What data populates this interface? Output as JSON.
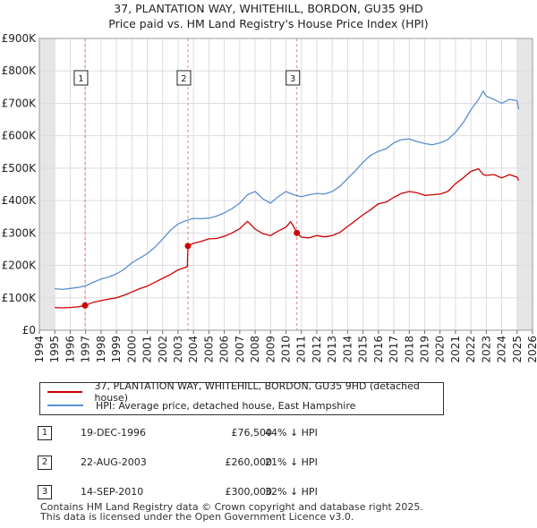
{
  "title_line1": "37, PLANTATION WAY, WHITEHILL, BORDON, GU35 9HD",
  "title_line2": "Price paid vs. HM Land Registry's House Price Index (HPI)",
  "chart_data": {
    "type": "line",
    "title": "37, PLANTATION WAY, WHITEHILL, BORDON, GU35 9HD — Price paid vs. HM Land Registry's House Price Index (HPI)",
    "xlabel": "",
    "ylabel": "",
    "xlim": [
      1994,
      2026
    ],
    "ylim": [
      0,
      900000
    ],
    "y_ticks": [
      0,
      100000,
      200000,
      300000,
      400000,
      500000,
      600000,
      700000,
      800000,
      900000
    ],
    "y_tick_labels": [
      "£0",
      "£100K",
      "£200K",
      "£300K",
      "£400K",
      "£500K",
      "£600K",
      "£700K",
      "£800K",
      "£900K"
    ],
    "x_ticks": [
      1994,
      1995,
      1996,
      1997,
      1998,
      1999,
      2000,
      2001,
      2002,
      2003,
      2004,
      2005,
      2006,
      2007,
      2008,
      2009,
      2010,
      2011,
      2012,
      2013,
      2014,
      2015,
      2016,
      2017,
      2018,
      2019,
      2020,
      2021,
      2022,
      2023,
      2024,
      2025,
      2026
    ],
    "x_tick_labels": [
      "1994",
      "1995",
      "1996",
      "1997",
      "1998",
      "1999",
      "2000",
      "2001",
      "2002",
      "2003",
      "2004",
      "2005",
      "2006",
      "2007",
      "2008",
      "2009",
      "2010",
      "2011",
      "2012",
      "2013",
      "2014",
      "2015",
      "2016",
      "2017",
      "2018",
      "2019",
      "2020",
      "2021",
      "2022",
      "2023",
      "2024",
      "2025",
      "2026"
    ],
    "grid": true,
    "shaded_ranges": [
      [
        1994,
        1995
      ],
      [
        2025,
        2026
      ]
    ],
    "series": [
      {
        "name": "37, PLANTATION WAY, WHITEHILL, BORDON, GU35 9HD (detached house)",
        "color": "#cc0000",
        "x": [
          1995.0,
          1995.5,
          1996.0,
          1996.5,
          1996.96,
          1997.5,
          1998.0,
          1998.5,
          1999.0,
          1999.5,
          2000.0,
          2000.5,
          2001.0,
          2001.5,
          2002.0,
          2002.5,
          2003.0,
          2003.6,
          2003.64,
          2004.0,
          2004.5,
          2005.0,
          2005.5,
          2006.0,
          2006.5,
          2007.0,
          2007.5,
          2008.0,
          2008.5,
          2009.0,
          2009.5,
          2010.0,
          2010.3,
          2010.5,
          2010.71,
          2011.0,
          2011.5,
          2012.0,
          2012.5,
          2013.0,
          2013.5,
          2014.0,
          2014.5,
          2015.0,
          2015.5,
          2016.0,
          2016.5,
          2017.0,
          2017.5,
          2018.0,
          2018.5,
          2019.0,
          2019.5,
          2020.0,
          2020.5,
          2021.0,
          2021.5,
          2022.0,
          2022.5,
          2022.8,
          2023.0,
          2023.5,
          2024.0,
          2024.5,
          2025.0,
          2025.1
        ],
        "values": [
          70000,
          69000,
          70000,
          72000,
          76500,
          86000,
          91000,
          96000,
          100000,
          108000,
          118000,
          128000,
          136000,
          148000,
          160000,
          172000,
          186000,
          196000,
          260000,
          268000,
          274000,
          282000,
          283000,
          290000,
          300000,
          313000,
          336000,
          312000,
          298000,
          292000,
          306000,
          318000,
          335000,
          320000,
          300000,
          287000,
          285000,
          292000,
          288000,
          292000,
          302000,
          320000,
          338000,
          356000,
          372000,
          390000,
          395000,
          410000,
          422000,
          428000,
          424000,
          416000,
          418000,
          420000,
          428000,
          452000,
          470000,
          490000,
          498000,
          480000,
          478000,
          480000,
          470000,
          480000,
          472000,
          462000
        ]
      },
      {
        "name": "HPI: Average price, detached house, East Hampshire",
        "color": "#5b8fd0",
        "x": [
          1995.0,
          1995.5,
          1996.0,
          1996.5,
          1997.0,
          1997.5,
          1998.0,
          1998.5,
          1999.0,
          1999.5,
          2000.0,
          2000.5,
          2001.0,
          2001.5,
          2002.0,
          2002.5,
          2003.0,
          2003.5,
          2004.0,
          2004.5,
          2005.0,
          2005.5,
          2006.0,
          2006.5,
          2007.0,
          2007.5,
          2008.0,
          2008.5,
          2009.0,
          2009.5,
          2010.0,
          2010.5,
          2011.0,
          2011.5,
          2012.0,
          2012.5,
          2013.0,
          2013.5,
          2014.0,
          2014.5,
          2015.0,
          2015.5,
          2016.0,
          2016.5,
          2017.0,
          2017.5,
          2018.0,
          2018.5,
          2019.0,
          2019.5,
          2020.0,
          2020.5,
          2021.0,
          2021.5,
          2022.0,
          2022.5,
          2022.8,
          2023.0,
          2023.5,
          2024.0,
          2024.5,
          2025.0,
          2025.1
        ],
        "values": [
          128000,
          126000,
          129000,
          132000,
          137000,
          148000,
          158000,
          164000,
          174000,
          188000,
          208000,
          222000,
          236000,
          256000,
          282000,
          308000,
          328000,
          338000,
          345000,
          344000,
          346000,
          352000,
          362000,
          375000,
          392000,
          418000,
          428000,
          405000,
          392000,
          412000,
          428000,
          418000,
          412000,
          418000,
          422000,
          420000,
          428000,
          444000,
          468000,
          492000,
          518000,
          540000,
          552000,
          560000,
          578000,
          588000,
          590000,
          582000,
          576000,
          572000,
          578000,
          588000,
          610000,
          640000,
          680000,
          712000,
          738000,
          722000,
          712000,
          700000,
          712000,
          708000,
          682000
        ]
      }
    ],
    "annotations": [
      {
        "label": "1",
        "x": 1996.96,
        "price": 76500
      },
      {
        "label": "2",
        "x": 2003.64,
        "price": 260000
      },
      {
        "label": "3",
        "x": 2010.71,
        "price": 300000
      }
    ]
  },
  "legend": [
    {
      "label": "37, PLANTATION WAY, WHITEHILL, BORDON, GU35 9HD (detached house)",
      "color": "#cc0000"
    },
    {
      "label": "HPI: Average price, detached house, East Hampshire",
      "color": "#5b8fd0"
    }
  ],
  "sales": [
    {
      "num": "1",
      "date": "19-DEC-1996",
      "price": "£76,500",
      "hpi": "44% ↓ HPI"
    },
    {
      "num": "2",
      "date": "22-AUG-2003",
      "price": "£260,000",
      "hpi": "21% ↓ HPI"
    },
    {
      "num": "3",
      "date": "14-SEP-2010",
      "price": "£300,000",
      "hpi": "32% ↓ HPI"
    }
  ],
  "footer_line1": "Contains HM Land Registry data © Crown copyright and database right 2025.",
  "footer_line2": "This data is licensed under the Open Government Licence v3.0."
}
